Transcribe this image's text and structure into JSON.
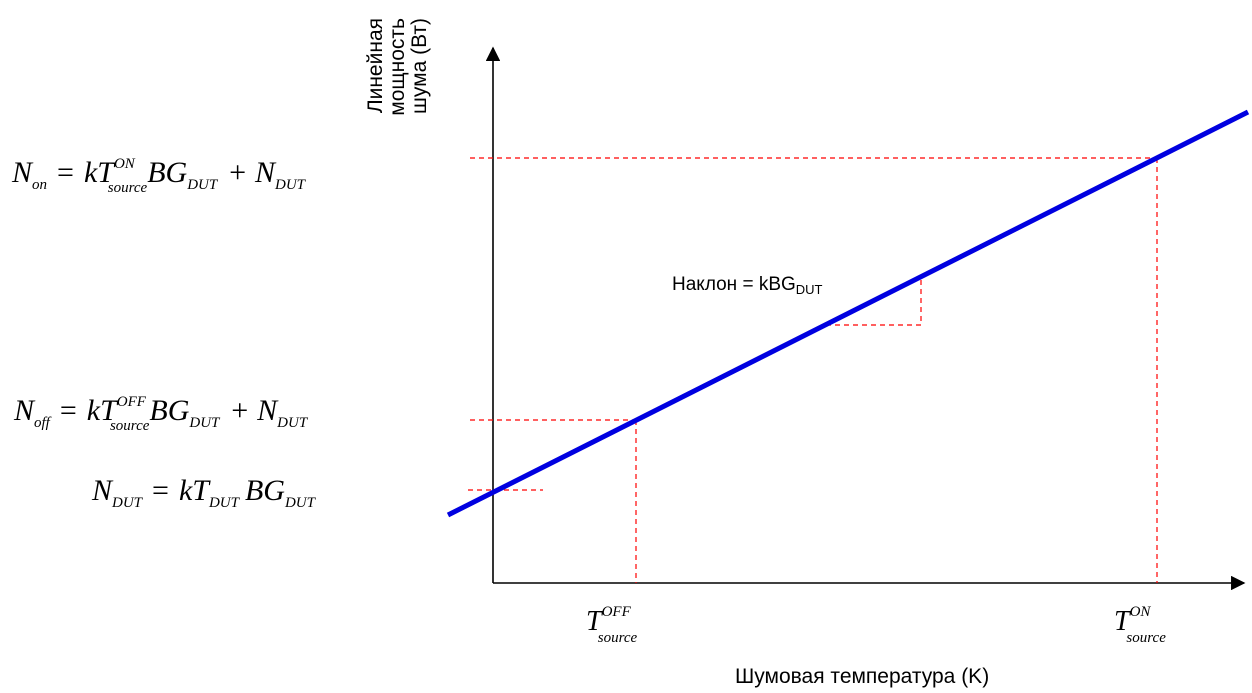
{
  "axes": {
    "y_label_lines": [
      "Линейная",
      "мощность",
      "шума (Вт)"
    ],
    "x_label": "Шумовая температура (K)"
  },
  "slope_label": {
    "text": "Наклон = kBG",
    "subscript": "DUT"
  },
  "equations": {
    "n_on": {
      "lhs": "N",
      "lhs_sub": "on",
      "k": "kT",
      "sup": "ON",
      "sub": "source",
      "bg": "BG",
      "bg_sub": "DUT",
      "plus": "+ N",
      "plus_sub": "DUT",
      "eq": "="
    },
    "n_off": {
      "lhs": "N",
      "lhs_sub": "off",
      "k": "kT",
      "sup": "OFF",
      "sub": "source",
      "bg": "BG",
      "bg_sub": "DUT",
      "plus": "+ N",
      "plus_sub": "DUT",
      "eq": "="
    },
    "n_dut": {
      "lhs": "N",
      "lhs_sub": "DUT",
      "k": "kT",
      "sub": "DUT",
      "bg": "BG",
      "bg_sub": "DUT",
      "eq": "="
    }
  },
  "ticks": {
    "t_off": {
      "base": "T",
      "sup": "OFF",
      "sub": "source"
    },
    "t_on": {
      "base": "T",
      "sup": "ON",
      "sub": "source"
    }
  },
  "colors": {
    "line": "#0000e0",
    "guides": "#ff0000",
    "axes": "#000000"
  }
}
